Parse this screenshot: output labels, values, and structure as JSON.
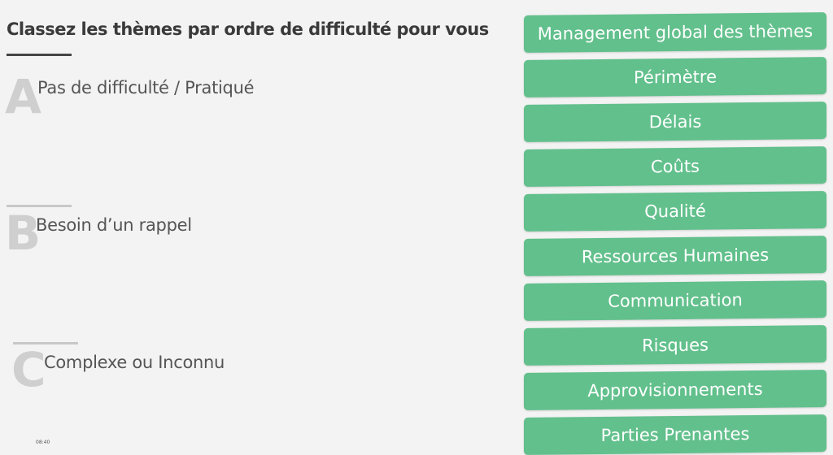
{
  "header": {
    "title": "Classez les thèmes par ordre de difficulté pour vous"
  },
  "levels": [
    {
      "letter": "A",
      "label": "Pas de difficulté / Pratiqué"
    },
    {
      "letter": "B",
      "label": "Besoin d’un rappel"
    },
    {
      "letter": "C",
      "label": "Complexe ou Inconnu"
    }
  ],
  "themes": [
    "Management global des thèmes",
    "Périmètre",
    "Délais",
    "Coûts",
    "Qualité",
    "Ressources Humaines",
    "Communication",
    "Risques",
    "Approvisionnements",
    "Parties Prenantes"
  ],
  "timestamp": "08:40"
}
